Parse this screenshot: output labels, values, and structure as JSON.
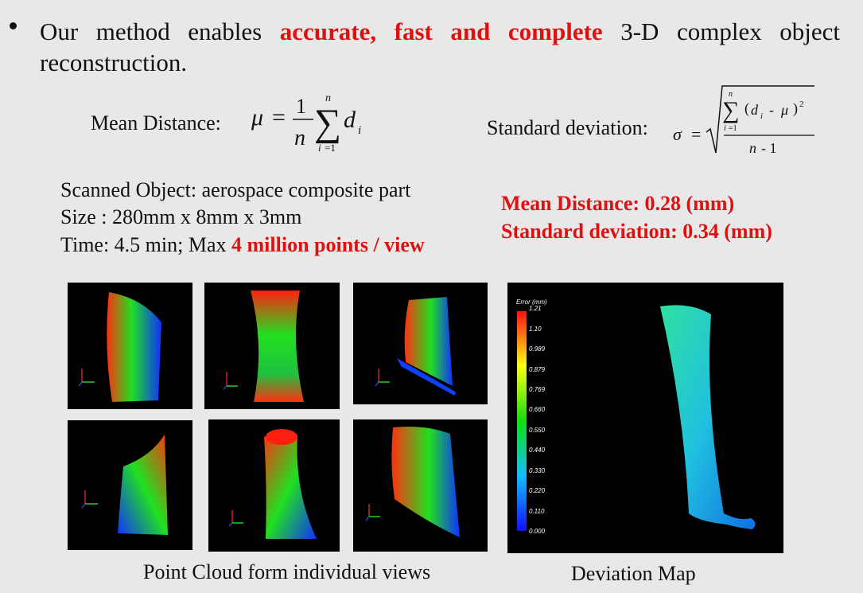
{
  "bullet": {
    "prefix": "Our method enables ",
    "highlight": "accurate, fast and complete",
    "suffix": " 3-D complex object reconstruction."
  },
  "formulas": {
    "mean_label": "Mean Distance:",
    "std_label": "Standard deviation:"
  },
  "scan_info": {
    "object": "Scanned Object: aerospace composite part",
    "size": "Size : 280mm x 8mm x 3mm",
    "time_prefix": "Time: 4.5 min; Max ",
    "time_highlight": "4 million points / view"
  },
  "results": {
    "mean_distance": "Mean Distance: 0.28 (mm)",
    "std_deviation": "Standard deviation: 0.34 (mm)"
  },
  "deviation_map": {
    "legend_title": "Error (mm)",
    "legend_ticks": [
      "1.21",
      "1.10",
      "0.989",
      "0.879",
      "0.769",
      "0.660",
      "0.550",
      "0.440",
      "0.330",
      "0.220",
      "0.110",
      "0.000"
    ]
  },
  "captions": {
    "point_cloud": "Point Cloud form individual views",
    "deviation": "Deviation Map"
  },
  "colors": {
    "highlight": "#e01010",
    "background": "#e8e8e8"
  }
}
